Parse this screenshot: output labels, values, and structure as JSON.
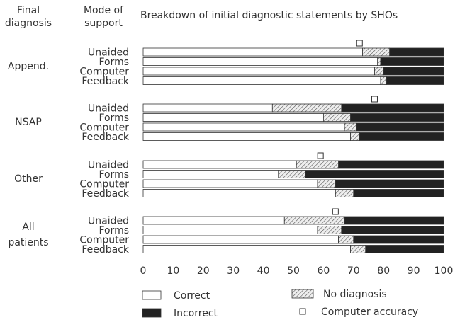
{
  "chart_data": {
    "type": "grouped_stacked_bar_horizontal",
    "title": "Breakdown of initial diagnostic statements by SHOs",
    "group_header": [
      "Final",
      "diagnosis"
    ],
    "category_header": [
      "Mode of",
      "support"
    ],
    "groups": [
      [
        "Append."
      ],
      [
        "NSAP"
      ],
      [
        "Other"
      ],
      [
        "All",
        "patients"
      ]
    ],
    "categories": [
      "Unaided",
      "Forms",
      "Computer",
      "Feedback"
    ],
    "series": [
      {
        "name": "Correct",
        "color": "#ffffff",
        "values": [
          [
            73,
            78,
            77,
            79
          ],
          [
            43,
            60,
            67,
            69
          ],
          [
            51,
            45,
            58,
            64
          ],
          [
            47,
            58,
            65,
            69
          ]
        ]
      },
      {
        "name": "No diagnosis",
        "color": "hatch",
        "values": [
          [
            9,
            1,
            3,
            2
          ],
          [
            23,
            9,
            4,
            3
          ],
          [
            14,
            9,
            6,
            6
          ],
          [
            20,
            8,
            5,
            5
          ]
        ]
      },
      {
        "name": "Incorrect",
        "color": "#222222",
        "values": [
          [
            18,
            21,
            20,
            19
          ],
          [
            34,
            31,
            29,
            28
          ],
          [
            35,
            46,
            36,
            30
          ],
          [
            33,
            34,
            30,
            26
          ]
        ]
      }
    ],
    "computer_accuracy": {
      "name": "Computer accuracy",
      "values": [
        72,
        77,
        59,
        64
      ]
    },
    "xlim": [
      0,
      100
    ],
    "xticks": [
      0,
      10,
      20,
      30,
      40,
      50,
      60,
      70,
      80,
      90,
      100
    ]
  }
}
